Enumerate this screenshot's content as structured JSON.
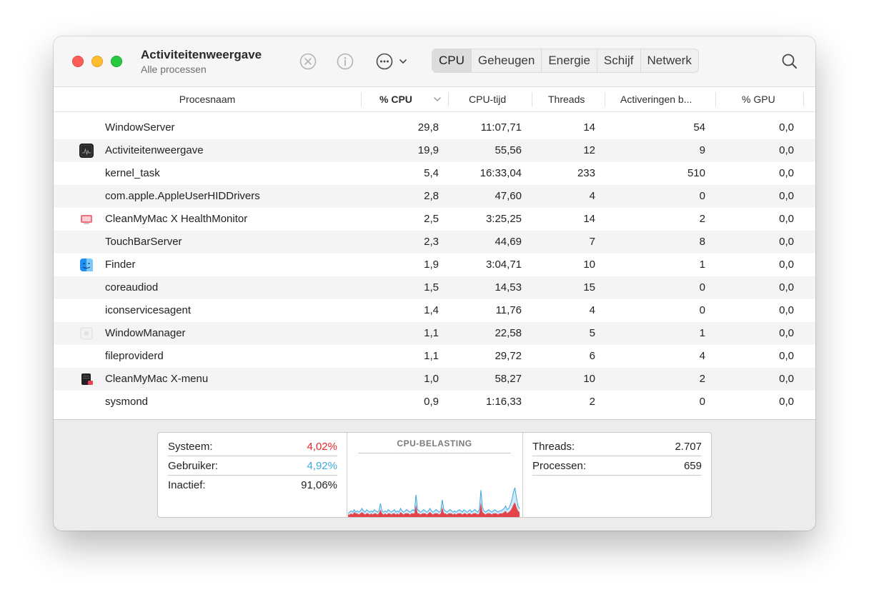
{
  "window": {
    "title": "Activiteitenweergave",
    "subtitle": "Alle processen"
  },
  "toolbar": {
    "stop_icon": "x-circle-icon",
    "info_icon": "info-icon",
    "more_icon": "ellipsis-circle-icon",
    "tabs": [
      "CPU",
      "Geheugen",
      "Energie",
      "Schijf",
      "Netwerk"
    ],
    "active_tab": "CPU",
    "search_icon": "magnifying-glass-icon"
  },
  "table": {
    "columns": [
      "Procesnaam",
      "% CPU",
      "CPU-tijd",
      "Threads",
      "Activeringen b...",
      "% GPU"
    ],
    "rows": [
      {
        "name": "WindowServer",
        "cpu": "29,8",
        "time": "11:07,71",
        "threads": "14",
        "wakeups": "54",
        "gpu": "0,0",
        "icon": ""
      },
      {
        "name": "Activiteitenweergave",
        "cpu": "19,9",
        "time": "55,56",
        "threads": "12",
        "wakeups": "9",
        "gpu": "0,0",
        "icon": "activity-monitor-icon"
      },
      {
        "name": "kernel_task",
        "cpu": "5,4",
        "time": "16:33,04",
        "threads": "233",
        "wakeups": "510",
        "gpu": "0,0",
        "icon": ""
      },
      {
        "name": "com.apple.AppleUserHIDDrivers",
        "cpu": "2,8",
        "time": "47,60",
        "threads": "4",
        "wakeups": "0",
        "gpu": "0,0",
        "icon": ""
      },
      {
        "name": "CleanMyMac X HealthMonitor",
        "cpu": "2,5",
        "time": "3:25,25",
        "threads": "14",
        "wakeups": "2",
        "gpu": "0,0",
        "icon": "healthmonitor-icon"
      },
      {
        "name": "TouchBarServer",
        "cpu": "2,3",
        "time": "44,69",
        "threads": "7",
        "wakeups": "8",
        "gpu": "0,0",
        "icon": ""
      },
      {
        "name": "Finder",
        "cpu": "1,9",
        "time": "3:04,71",
        "threads": "10",
        "wakeups": "1",
        "gpu": "0,0",
        "icon": "finder-icon"
      },
      {
        "name": "coreaudiod",
        "cpu": "1,5",
        "time": "14,53",
        "threads": "15",
        "wakeups": "0",
        "gpu": "0,0",
        "icon": ""
      },
      {
        "name": "iconservicesagent",
        "cpu": "1,4",
        "time": "11,76",
        "threads": "4",
        "wakeups": "0",
        "gpu": "0,0",
        "icon": ""
      },
      {
        "name": "WindowManager",
        "cpu": "1,1",
        "time": "22,58",
        "threads": "5",
        "wakeups": "1",
        "gpu": "0,0",
        "icon": "window-manager-icon"
      },
      {
        "name": "fileproviderd",
        "cpu": "1,1",
        "time": "29,72",
        "threads": "6",
        "wakeups": "4",
        "gpu": "0,0",
        "icon": ""
      },
      {
        "name": "CleanMyMac X-menu",
        "cpu": "1,0",
        "time": "58,27",
        "threads": "10",
        "wakeups": "2",
        "gpu": "0,0",
        "icon": "cleanmymac-menu-icon"
      },
      {
        "name": "sysmond",
        "cpu": "0,9",
        "time": "1:16,33",
        "threads": "2",
        "wakeups": "0",
        "gpu": "0,0",
        "icon": ""
      }
    ]
  },
  "footer": {
    "system_label": "Systeem:",
    "system_value": "4,02%",
    "user_label": "Gebruiker:",
    "user_value": "4,92%",
    "idle_label": "Inactief:",
    "idle_value": "91,06%",
    "chart_title": "CPU-BELASTING",
    "threads_label": "Threads:",
    "threads_value": "2.707",
    "processes_label": "Processen:",
    "processes_value": "659",
    "colors": {
      "system": "#e8262b",
      "user": "#3fa7e0"
    }
  },
  "chart_data": {
    "type": "area",
    "title": "CPU-BELASTING",
    "series": [
      {
        "name": "Gebruiker",
        "values": [
          3,
          4,
          5,
          4,
          6,
          4,
          5,
          4,
          5,
          7,
          5,
          4,
          6,
          5,
          4,
          5,
          4,
          6,
          5,
          4,
          5,
          11,
          5,
          4,
          5,
          4,
          6,
          5,
          4,
          5,
          6,
          4,
          5,
          4,
          7,
          5,
          4,
          5,
          6,
          5,
          4,
          5,
          6,
          5,
          18,
          6,
          5,
          4,
          5,
          6,
          5,
          4,
          5,
          7,
          5,
          4,
          5,
          6,
          5,
          4,
          5,
          14,
          6,
          5,
          4,
          5,
          6,
          5,
          4,
          5,
          4,
          5,
          6,
          5,
          4,
          6,
          5,
          4,
          5,
          6,
          4,
          5,
          6,
          5,
          4,
          6,
          22,
          8,
          5,
          4,
          5,
          6,
          5,
          4,
          5,
          6,
          5,
          4,
          5,
          5,
          6,
          7,
          9,
          6,
          7,
          10,
          14,
          20,
          24,
          16,
          9,
          7
        ]
      },
      {
        "name": "Systeem",
        "values": [
          2,
          2,
          3,
          2,
          4,
          3,
          3,
          2,
          3,
          4,
          3,
          2,
          3,
          3,
          2,
          3,
          2,
          3,
          3,
          2,
          3,
          6,
          3,
          2,
          3,
          2,
          3,
          3,
          2,
          3,
          3,
          2,
          3,
          2,
          4,
          3,
          2,
          3,
          3,
          3,
          2,
          3,
          3,
          3,
          10,
          3,
          3,
          2,
          3,
          3,
          3,
          2,
          3,
          4,
          3,
          2,
          3,
          3,
          3,
          2,
          3,
          8,
          3,
          3,
          2,
          3,
          3,
          3,
          2,
          3,
          2,
          3,
          3,
          3,
          2,
          3,
          3,
          2,
          3,
          3,
          2,
          3,
          3,
          3,
          2,
          3,
          12,
          4,
          3,
          2,
          3,
          3,
          3,
          2,
          3,
          3,
          3,
          2,
          3,
          3,
          3,
          4,
          5,
          3,
          4,
          5,
          7,
          10,
          12,
          8,
          5,
          4
        ]
      }
    ],
    "ylim": [
      0,
      100
    ]
  }
}
